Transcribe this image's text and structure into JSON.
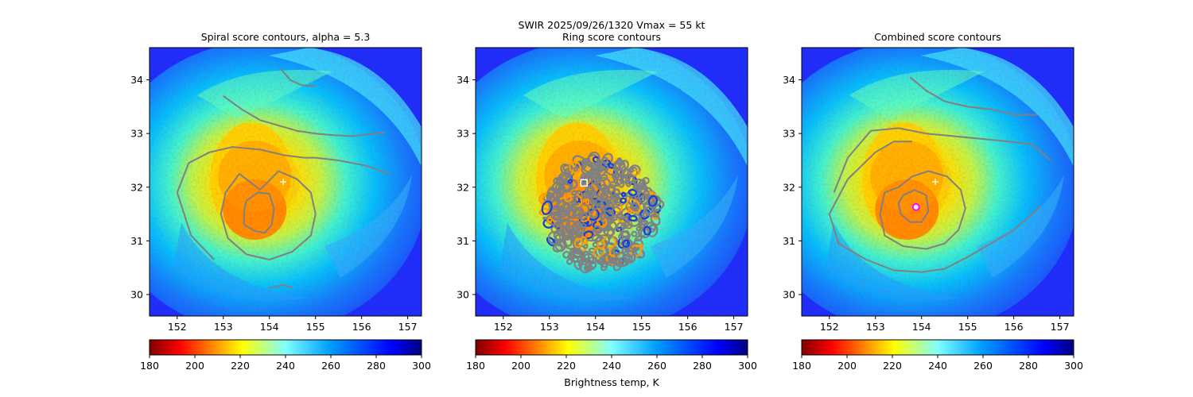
{
  "figure": {
    "suptitle_line1": "SWIR  2025/09/26/1320    Vmax = 55 kt",
    "colorbar_label": "Brightness temp, K"
  },
  "colors": {
    "contour": "#808080",
    "cold_core": "#ff7f00",
    "background_sea": "#1a2fff",
    "marker_best_track": "#ffffff",
    "marker_center": "#ff00ff"
  },
  "chart_data": [
    {
      "type": "heatmap",
      "title": "Spiral score contours, alpha =  5.3",
      "xlim": [
        151.4,
        157.3
      ],
      "ylim": [
        29.6,
        34.6
      ],
      "xticks": [
        "152",
        "153",
        "154",
        "155",
        "156",
        "157"
      ],
      "yticks": [
        "30",
        "31",
        "32",
        "33",
        "34"
      ],
      "colorbar": {
        "min": 180,
        "max": 300,
        "ticks": [
          "180",
          "200",
          "220",
          "240",
          "260",
          "280",
          "300"
        ],
        "colormap": "jet_reversed"
      },
      "best_track_marker": {
        "lon": 154.3,
        "lat": 32.1
      },
      "contours": [
        {
          "lon": [
            153.5,
            153.75,
            154.0,
            154.1,
            154.05,
            153.9,
            153.7,
            153.45,
            153.45,
            153.5
          ],
          "lat": [
            31.75,
            31.9,
            31.88,
            31.6,
            31.3,
            31.15,
            31.18,
            31.3,
            31.55,
            31.75
          ]
        },
        {
          "lon": [
            153.8,
            153.35,
            153.05,
            152.95,
            153.1,
            153.5,
            154.0,
            154.5,
            154.9,
            155.0,
            154.9,
            154.6,
            154.2,
            153.8
          ],
          "lat": [
            31.95,
            32.25,
            31.9,
            31.5,
            31.05,
            30.75,
            30.65,
            30.8,
            31.1,
            31.5,
            31.9,
            32.15,
            32.3,
            31.95
          ]
        },
        {
          "lon": [
            152.8,
            152.3,
            152.0,
            152.25,
            152.7,
            153.2,
            153.8,
            154.3,
            154.75,
            155.0,
            155.5,
            156.1,
            156.6
          ],
          "lat": [
            30.65,
            31.1,
            31.9,
            32.45,
            32.65,
            32.75,
            32.7,
            32.6,
            32.55,
            32.55,
            32.5,
            32.4,
            32.25
          ]
        },
        {
          "lon": [
            153.0,
            153.4,
            153.8,
            154.2,
            154.6,
            155.0,
            155.4,
            155.8,
            156.1,
            156.5
          ],
          "lat": [
            33.7,
            33.45,
            33.25,
            33.15,
            33.05,
            33.0,
            32.97,
            32.95,
            32.98,
            33.02
          ]
        },
        {
          "lon": [
            154.25,
            154.45,
            154.7,
            155.0
          ],
          "lat": [
            34.2,
            34.0,
            33.9,
            33.88
          ]
        },
        {
          "lon": [
            154.0,
            154.3,
            154.5
          ],
          "lat": [
            30.12,
            30.18,
            30.12
          ]
        }
      ]
    },
    {
      "type": "heatmap",
      "title": "Ring score contours",
      "xlim": [
        151.4,
        157.3
      ],
      "ylim": [
        29.6,
        34.6
      ],
      "xticks": [
        "152",
        "153",
        "154",
        "155",
        "156",
        "157"
      ],
      "yticks": [
        "30",
        "31",
        "32",
        "33",
        "34"
      ],
      "colorbar": {
        "min": 180,
        "max": 300,
        "ticks": [
          "180",
          "200",
          "220",
          "240",
          "260",
          "280",
          "300"
        ],
        "colormap": "jet_reversed"
      },
      "ring_center_marker": {
        "lon": 153.75,
        "lat": 32.08
      },
      "ring_region": {
        "center_lon": 154.1,
        "center_lat": 31.5,
        "radius_lon": 1.25,
        "radius_lat": 1.05
      }
    },
    {
      "type": "heatmap",
      "title": "Combined score contours",
      "xlim": [
        151.4,
        157.3
      ],
      "ylim": [
        29.6,
        34.6
      ],
      "xticks": [
        "152",
        "153",
        "154",
        "155",
        "156",
        "157"
      ],
      "yticks": [
        "30",
        "31",
        "32",
        "33",
        "34"
      ],
      "colorbar": {
        "min": 180,
        "max": 300,
        "ticks": [
          "180",
          "200",
          "220",
          "240",
          "260",
          "280",
          "300"
        ],
        "colormap": "jet_reversed"
      },
      "best_track_marker": {
        "lon": 154.3,
        "lat": 32.1
      },
      "center_marker": {
        "lon": 153.88,
        "lat": 31.63
      },
      "contours": [
        {
          "lon": [
            153.6,
            153.85,
            154.1,
            154.15,
            154.0,
            153.75,
            153.55,
            153.5,
            153.6
          ],
          "lat": [
            31.85,
            31.95,
            31.85,
            31.55,
            31.35,
            31.35,
            31.5,
            31.7,
            31.85
          ]
        },
        {
          "lon": [
            153.5,
            153.2,
            153.1,
            153.2,
            153.6,
            154.1,
            154.5,
            154.8,
            154.95,
            154.85,
            154.55,
            154.15,
            153.8,
            153.5
          ],
          "lat": [
            32.0,
            31.9,
            31.5,
            31.1,
            30.9,
            30.85,
            30.95,
            31.2,
            31.6,
            31.95,
            32.2,
            32.3,
            32.2,
            32.0
          ]
        },
        {
          "lon": [
            153.8,
            153.4,
            153.0,
            152.4,
            152.0,
            152.2,
            152.8,
            153.4,
            154.0,
            154.5,
            155.0,
            155.5,
            156.0,
            156.4,
            156.6
          ],
          "lat": [
            32.85,
            32.85,
            32.65,
            32.15,
            31.5,
            30.95,
            30.65,
            30.45,
            30.42,
            30.48,
            30.7,
            30.95,
            31.2,
            31.5,
            31.65
          ]
        },
        {
          "lon": [
            152.1,
            152.4,
            152.9,
            153.5,
            154.1,
            154.7,
            155.3,
            155.9,
            156.4,
            156.8
          ],
          "lat": [
            31.9,
            32.55,
            33.05,
            33.1,
            33.0,
            32.95,
            32.9,
            32.85,
            32.8,
            32.5
          ]
        },
        {
          "lon": [
            153.75,
            154.1,
            154.5,
            155.0,
            155.5,
            156.0,
            156.5
          ],
          "lat": [
            34.05,
            33.8,
            33.6,
            33.5,
            33.45,
            33.35,
            33.35
          ]
        }
      ]
    }
  ]
}
